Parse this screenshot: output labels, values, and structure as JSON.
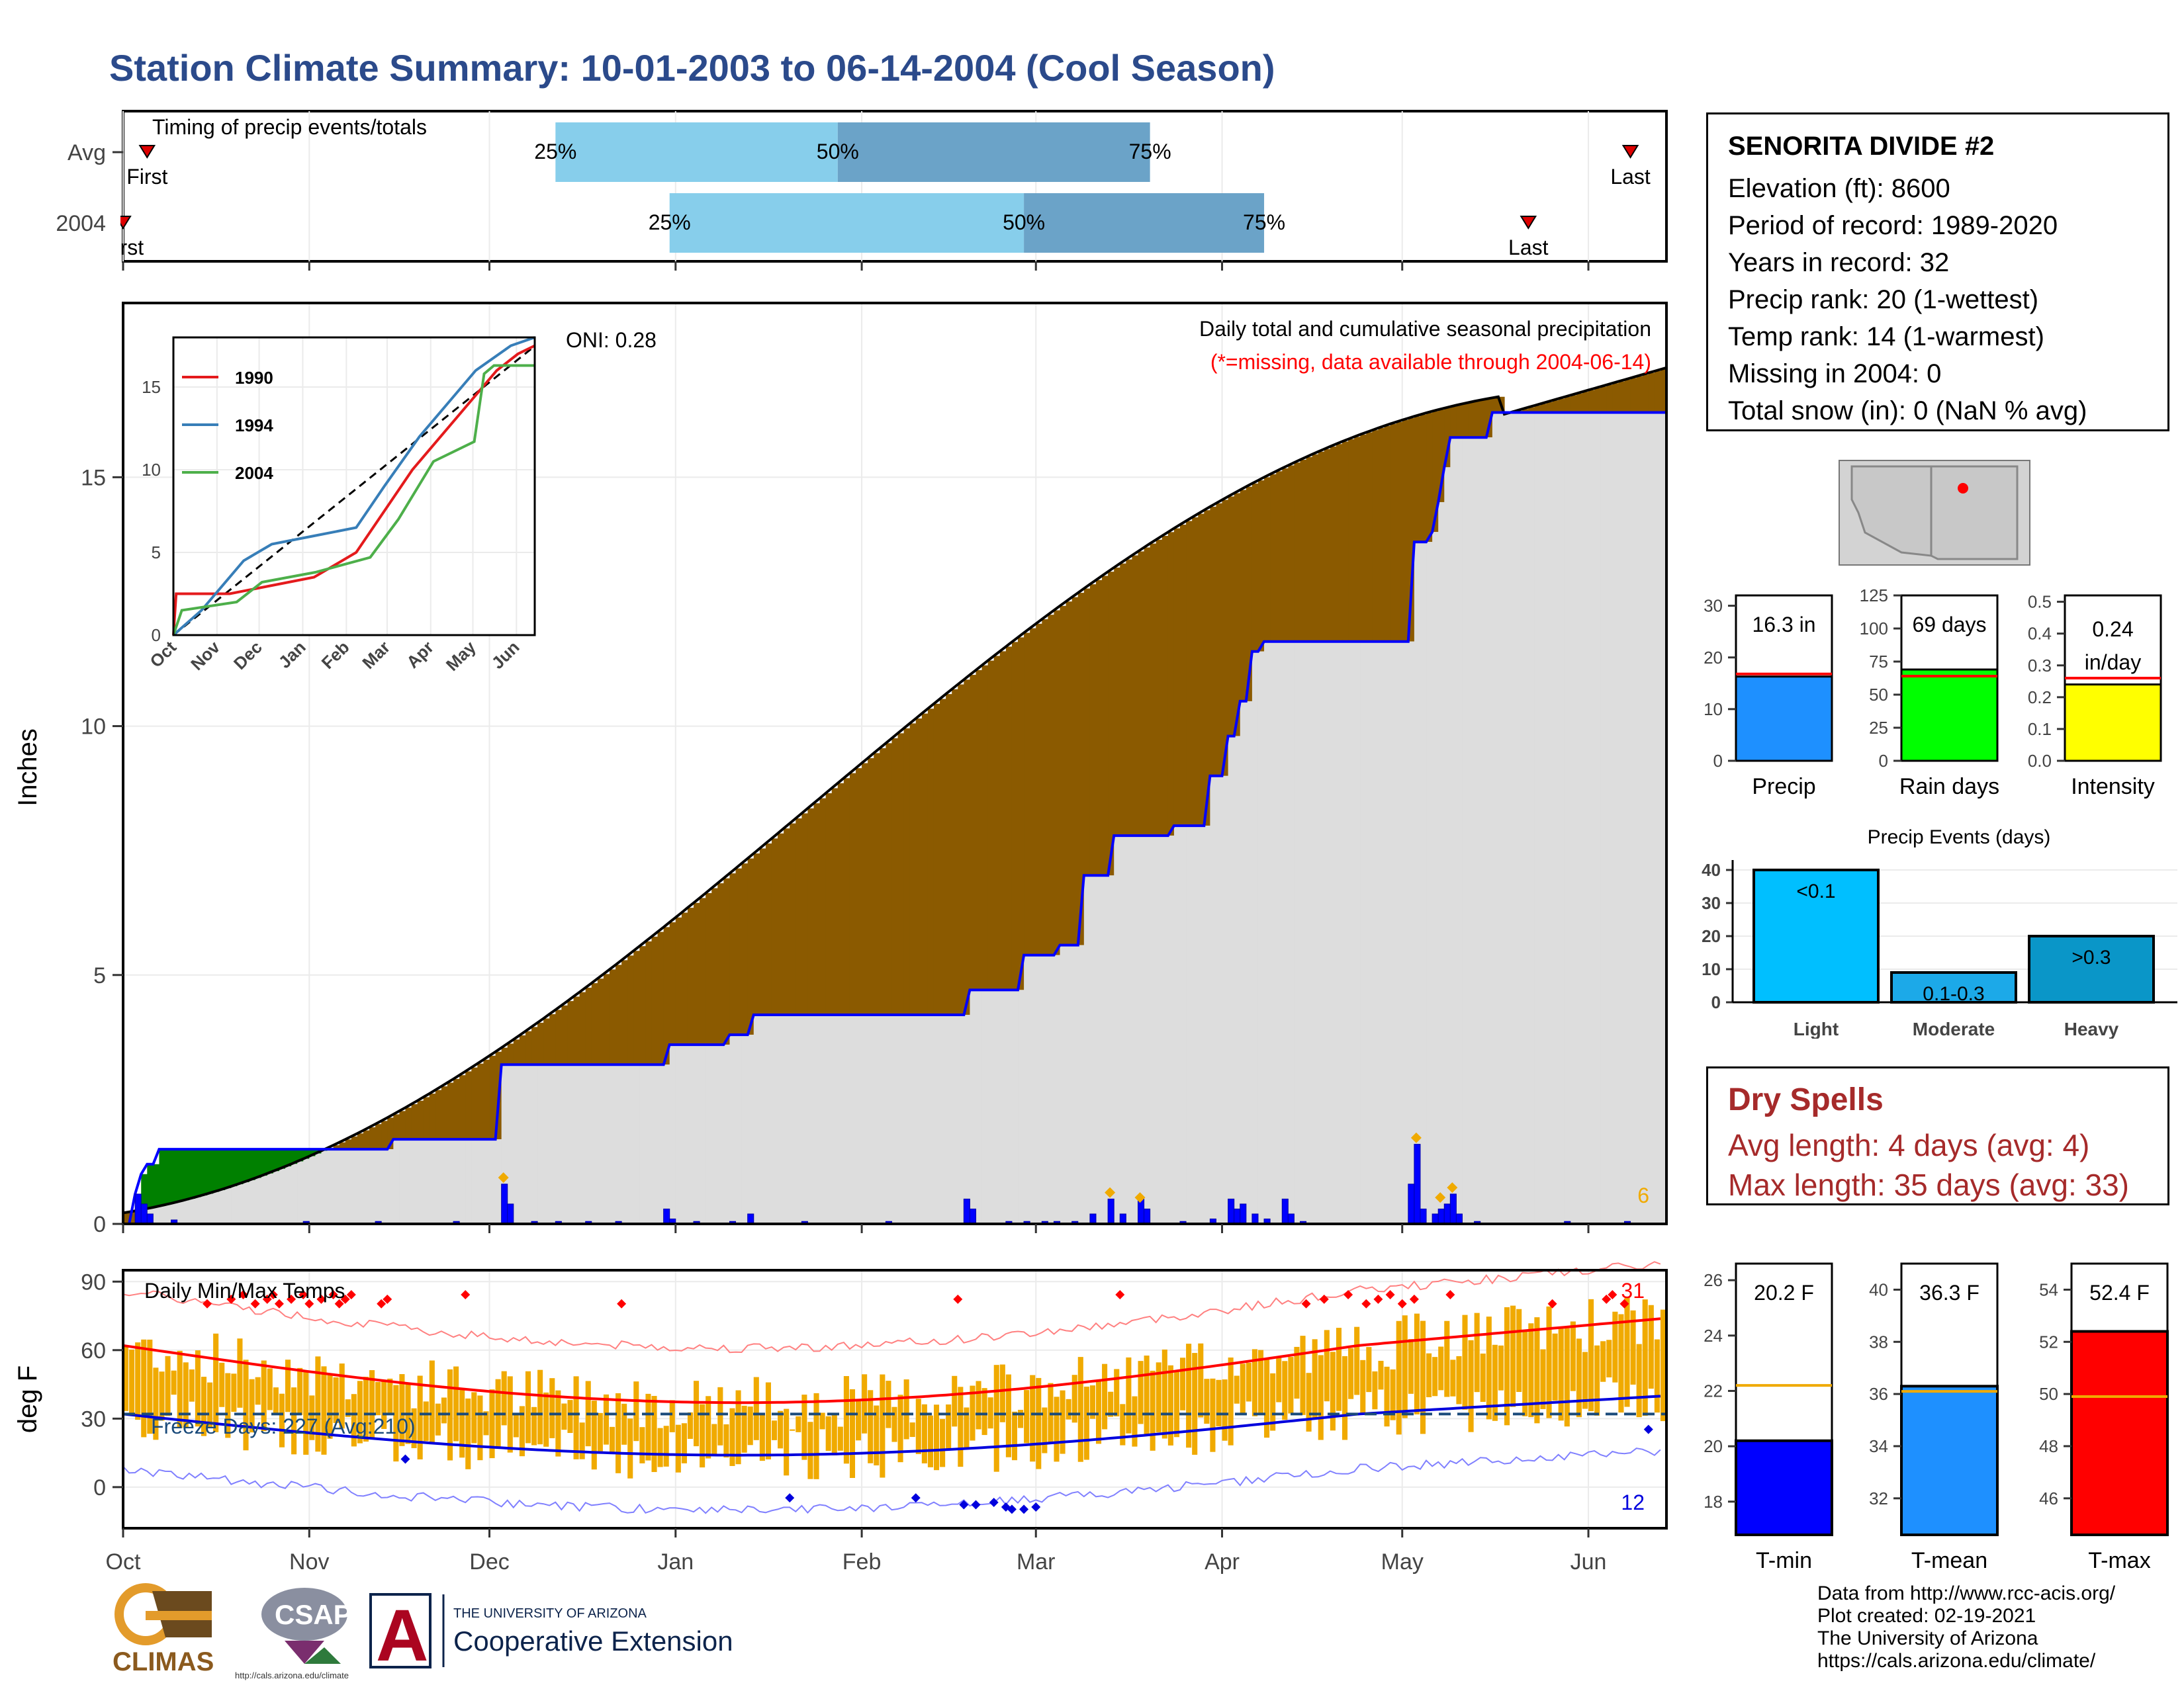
{
  "title": "Station Climate Summary: 10-01-2003 to 06-14-2004 (Cool Season)",
  "colors": {
    "title": "#2B4A8B",
    "q_light": "#87CEEB",
    "q_dark": "#6BA3C8",
    "brown": "#8B5A00",
    "green": "#008000",
    "blue": "#0000FF",
    "gray": "#DDDDDD",
    "orange": "#F0AA00",
    "red": "#FF0000"
  },
  "timing": {
    "label": "Timing of precip events/totals",
    "rows": [
      {
        "name": "Avg",
        "first_label": "First",
        "last_label": "Last",
        "first": "2003-10-05",
        "q25": "2003-12-12",
        "q50": "2004-01-28",
        "q75": "2004-03-20",
        "last": "2004-06-08",
        "p25": "25%",
        "p50": "50%",
        "p75": "75%"
      },
      {
        "name": "2004",
        "first_label": "First",
        "last_label": "Last",
        "first": "2003-10-01",
        "q25": "2003-12-31",
        "q50": "2004-02-28",
        "q75": "2004-04-08",
        "last": "2004-05-22",
        "p25": "25%",
        "p50": "50%",
        "p75": "75%"
      }
    ]
  },
  "precip_panel": {
    "title": "Daily total and cumulative seasonal precipitation",
    "subtitle": "(*=missing, data available through 2004-06-14)",
    "oni": "ONI: 0.28",
    "corner_count": "6",
    "ylabel": "Inches",
    "yticks": [
      "0",
      "5",
      "10",
      "15"
    ],
    "inset": {
      "legend": [
        "1990",
        "1994",
        "2004"
      ],
      "legend_colors": [
        "#E41A1C",
        "#377EB8",
        "#4DAF4A"
      ],
      "xticks": [
        "Oct",
        "Nov",
        "Dec",
        "Jan",
        "Feb",
        "Mar",
        "Apr",
        "May",
        "Jun"
      ],
      "yticks": [
        "0",
        "5",
        "10",
        "15"
      ]
    }
  },
  "temp_panel": {
    "title": "Daily Min/Max Temps",
    "ylabel": "deg F",
    "yticks": [
      "90",
      "60",
      "30",
      "0"
    ],
    "freeze": "Freeze Days: 227 (Avg:210)",
    "hot_count": "31",
    "cold_count": "12"
  },
  "months": [
    "Oct",
    "Nov",
    "Dec",
    "Jan",
    "Feb",
    "Mar",
    "Apr",
    "May",
    "Jun"
  ],
  "station": {
    "name": "SENORITA DIVIDE #2",
    "lines": [
      "Elevation (ft): 8600",
      "Period of record: 1989-2020",
      "Years in record: 32",
      "Precip rank: 20 (1-wettest)",
      "Temp rank: 14 (1-warmest)",
      "Missing in 2004: 0",
      "Total snow (in): 0 (NaN % avg)"
    ]
  },
  "summary_bars": [
    {
      "label": "Precip",
      "value_text": "16.3 in",
      "value": 16.3,
      "avg": 16.8,
      "ymax": 32,
      "yticks": [
        "0",
        "10",
        "20",
        "30"
      ],
      "color": "#1E90FF"
    },
    {
      "label": "Rain days",
      "value_text": "69 days",
      "value": 69,
      "avg": 64,
      "ymax": 125,
      "yticks": [
        "0",
        "25",
        "50",
        "75",
        "100",
        "125"
      ],
      "color": "#00FF00"
    },
    {
      "label": "Intensity",
      "value_text": "0.24 in/day",
      "value_line1": "0.24",
      "value_line2": "in/day",
      "value": 0.24,
      "avg": 0.26,
      "ymax": 0.52,
      "yticks": [
        "0.0",
        "0.1",
        "0.2",
        "0.3",
        "0.4",
        "0.5"
      ],
      "color": "#FFFF00"
    }
  ],
  "events": {
    "title": "Precip Events (days)",
    "yticks": [
      "0",
      "10",
      "20",
      "30",
      "40"
    ],
    "bars": [
      {
        "label": "Light",
        "text": "<0.1",
        "value": 40,
        "color": "#00BFFF"
      },
      {
        "label": "Moderate",
        "text": "0.1-0.3",
        "value": 9,
        "color": "#1CA9E8"
      },
      {
        "label": "Heavy",
        "text": ">0.3",
        "value": 20,
        "color": "#0A96C8"
      }
    ]
  },
  "dry_spells": {
    "title": "Dry Spells",
    "avg": "Avg length: 4 days (avg: 4)",
    "max": "Max length: 35 days (avg: 33)"
  },
  "temp_bars": [
    {
      "label": "T-min",
      "value_text": "20.2 F",
      "value": 20.2,
      "avg": 22.2,
      "ymin": 16.8,
      "ymax": 26.6,
      "yticks": [
        "18",
        "20",
        "22",
        "24",
        "26"
      ],
      "color": "#0000FF"
    },
    {
      "label": "T-mean",
      "value_text": "36.3 F",
      "value": 36.3,
      "avg": 36.1,
      "ymin": 30.6,
      "ymax": 41.0,
      "yticks": [
        "32",
        "34",
        "36",
        "38",
        "40"
      ],
      "color": "#1E90FF"
    },
    {
      "label": "T-max",
      "value_text": "52.4 F",
      "value": 52.4,
      "avg": 49.9,
      "ymin": 44.6,
      "ymax": 55.0,
      "yticks": [
        "46",
        "48",
        "50",
        "52",
        "54"
      ],
      "color": "#FF0000"
    }
  ],
  "credits": [
    "Data from http://www.rcc-acis.org/",
    "Plot created: 02-19-2021",
    "The University of Arizona",
    "https://cals.arizona.edu/climate/"
  ],
  "logos": {
    "climas": "CLIMAS",
    "csap": "CSAP",
    "csap_url": "http://cals.arizona.edu/climate",
    "ua_line1": "THE UNIVERSITY OF ARIZONA",
    "ua_line2": "Cooperative Extension",
    "ua_letter": "A"
  }
}
